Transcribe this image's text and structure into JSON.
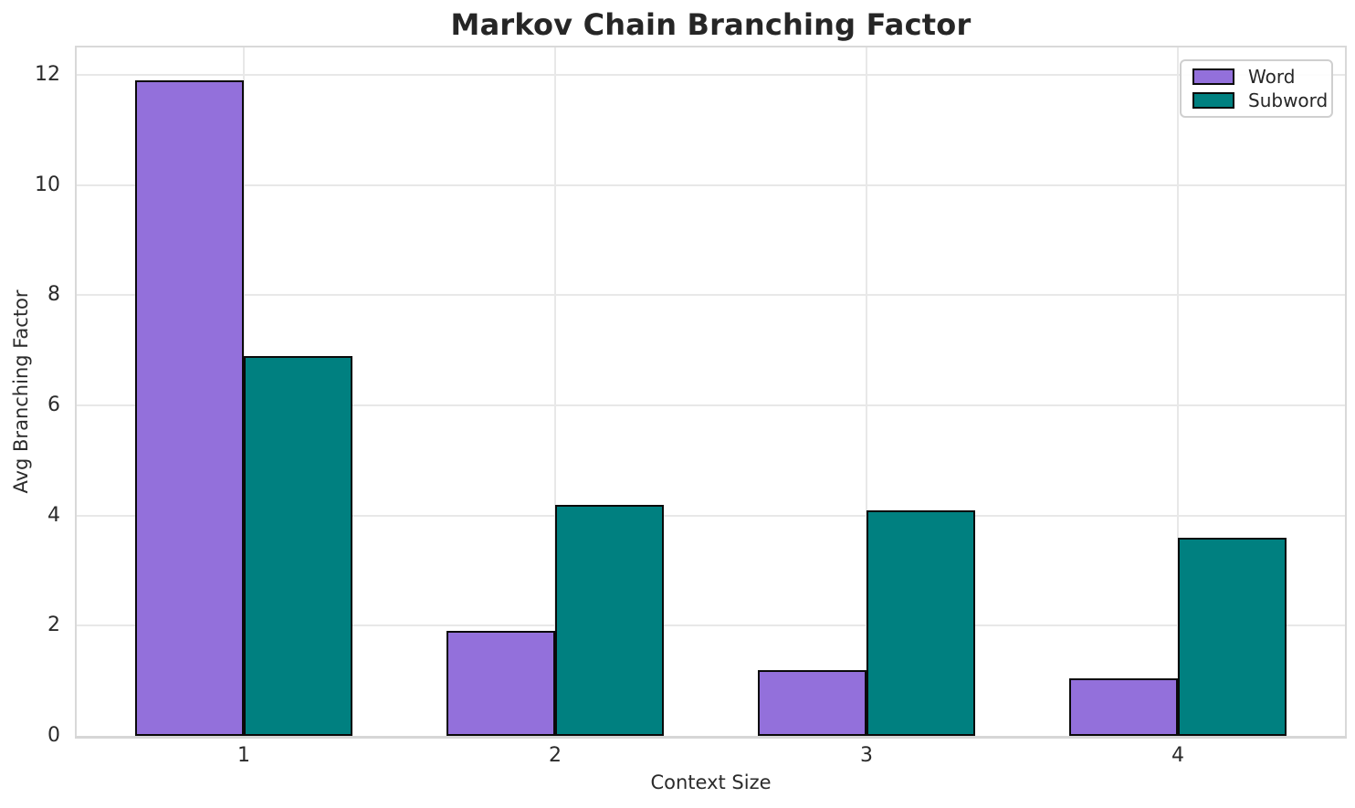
{
  "chart_data": {
    "type": "bar",
    "title": "Markov Chain Branching Factor",
    "xlabel": "Context Size",
    "ylabel": "Avg Branching Factor",
    "categories": [
      "1",
      "2",
      "3",
      "4"
    ],
    "series": [
      {
        "name": "Word",
        "color": "#9370DB",
        "values": [
          11.9,
          1.9,
          1.2,
          1.05
        ]
      },
      {
        "name": "Subword",
        "color": "#008080",
        "values": [
          6.9,
          4.2,
          4.1,
          3.6
        ]
      }
    ],
    "ylim": [
      0,
      12.5
    ],
    "yticks": [
      0,
      2,
      4,
      6,
      8,
      10,
      12
    ],
    "grid": true,
    "legend_position": "upper right",
    "legend_labels": [
      "Word",
      "Subword"
    ],
    "bar_edge_color": "#0a0a0a",
    "grid_color": "#e8e8e8",
    "background_color": "#ffffff",
    "text_color": "#262626"
  }
}
